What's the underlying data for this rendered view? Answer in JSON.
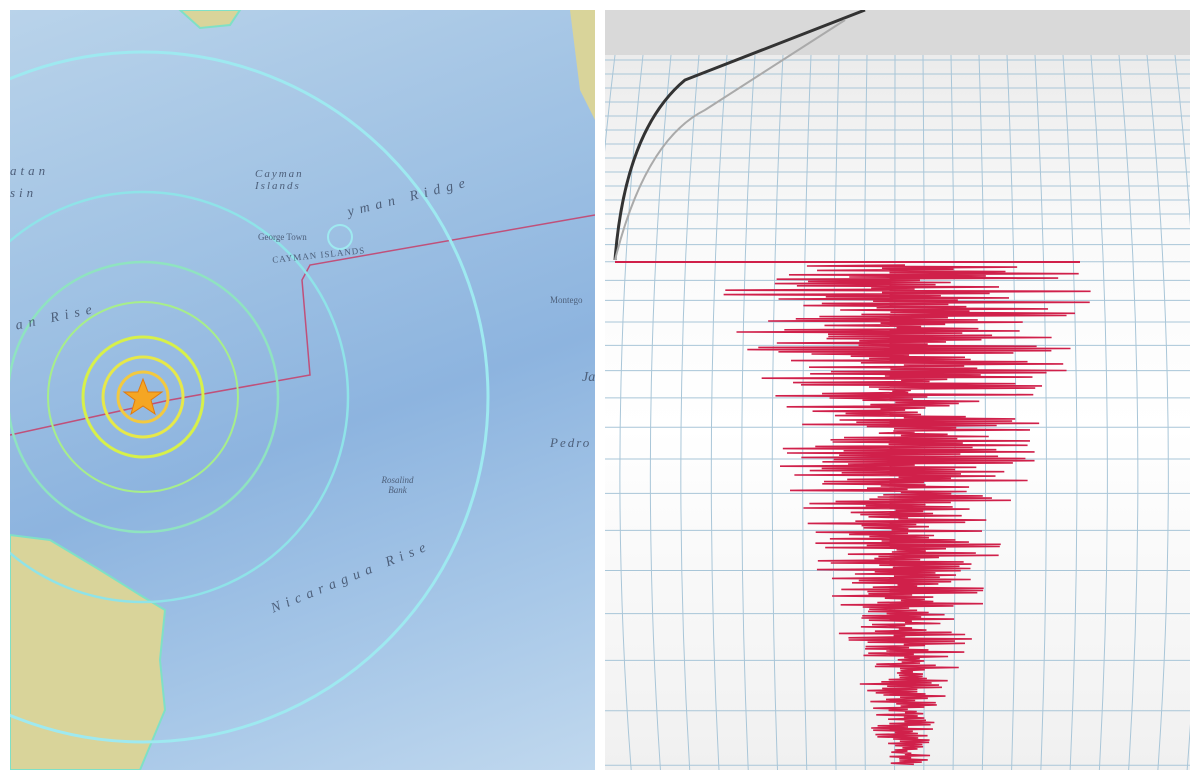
{
  "map": {
    "labels": {
      "yucatan_basin": "atan\nsin",
      "cayman_islands": "Cayman Islands",
      "cayman_ridge": "yman Ridge",
      "george_town": "George Town",
      "cayman_islands_caps": "CAYMAN ISLANDS",
      "cayman_rise": "an Rise",
      "pedro": "Pedro",
      "rosalind_bank": "Rosalind Bank",
      "nicaragua_rise": "Nicaragua Rise",
      "montego": "Montego",
      "ja": "Ja"
    },
    "epicenter_icon": "star-icon",
    "colors": {
      "water": "#9dc0e3",
      "land": "#d9d49a",
      "rings_outer": "#8fe3e8",
      "rings_inner": "#d7f04a",
      "epicenter": "#f5a623",
      "fault": "#c0507a"
    }
  },
  "seismograph": {
    "trace_color": "#d0204a",
    "grid_color": "#a9c6d8"
  }
}
